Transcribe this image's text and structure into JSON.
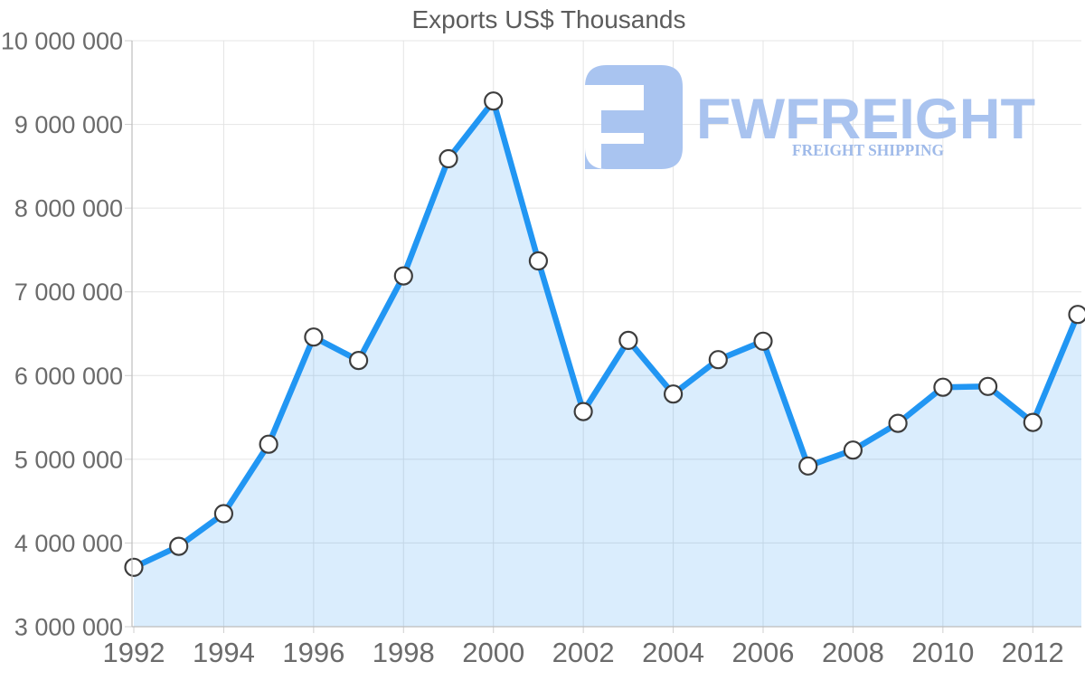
{
  "chart_data": {
    "type": "area",
    "title": "Exports US$ Thousands",
    "x": [
      1992,
      1993,
      1994,
      1995,
      1996,
      1997,
      1998,
      1999,
      2000,
      2001,
      2002,
      2003,
      2004,
      2005,
      2006,
      2007,
      2008,
      2009,
      2010,
      2011,
      2012,
      2013
    ],
    "values": [
      3710000,
      3960000,
      4350000,
      5180000,
      6460000,
      6180000,
      7190000,
      8590000,
      9280000,
      7370000,
      5570000,
      6420000,
      5780000,
      6190000,
      6410000,
      4920000,
      5110000,
      5430000,
      5860000,
      5870000,
      5440000,
      6730000
    ],
    "series_name": "Exports US$ Thousands",
    "xlabel": "",
    "ylabel": "",
    "ylim": [
      3000000,
      10000000
    ],
    "ytick_values": [
      3000000,
      4000000,
      5000000,
      6000000,
      7000000,
      8000000,
      9000000,
      10000000
    ],
    "ytick_labels": [
      "3 000 000",
      "4 000 000",
      "5 000 000",
      "6 000 000",
      "7 000 000",
      "8 000 000",
      "9 000 000",
      "10 000 000"
    ],
    "xtick_years": [
      1992,
      1994,
      1996,
      1998,
      2000,
      2002,
      2004,
      2006,
      2008,
      2010,
      2012
    ],
    "xtick_labels": [
      "1992",
      "1994",
      "1996",
      "1998",
      "2000",
      "2002",
      "2004",
      "2006",
      "2008",
      "2010",
      "2012"
    ],
    "grid": true,
    "legend": "none",
    "marker": "circle",
    "colors": {
      "line": "#2196f3",
      "area_fill": "rgba(33,150,243,0.17)",
      "marker_fill": "#ffffff",
      "marker_stroke": "#3d3d3d"
    }
  },
  "watermark": {
    "wordmark": "FWFREIGHT",
    "subtitle": "FREIGHT SHIPPING",
    "logo_icon": "fwfreight-glyph",
    "wordmark_color": "#a9c3ef",
    "subtitle_color": "#9fbae9",
    "glyph_color": "#a9c4f0"
  }
}
